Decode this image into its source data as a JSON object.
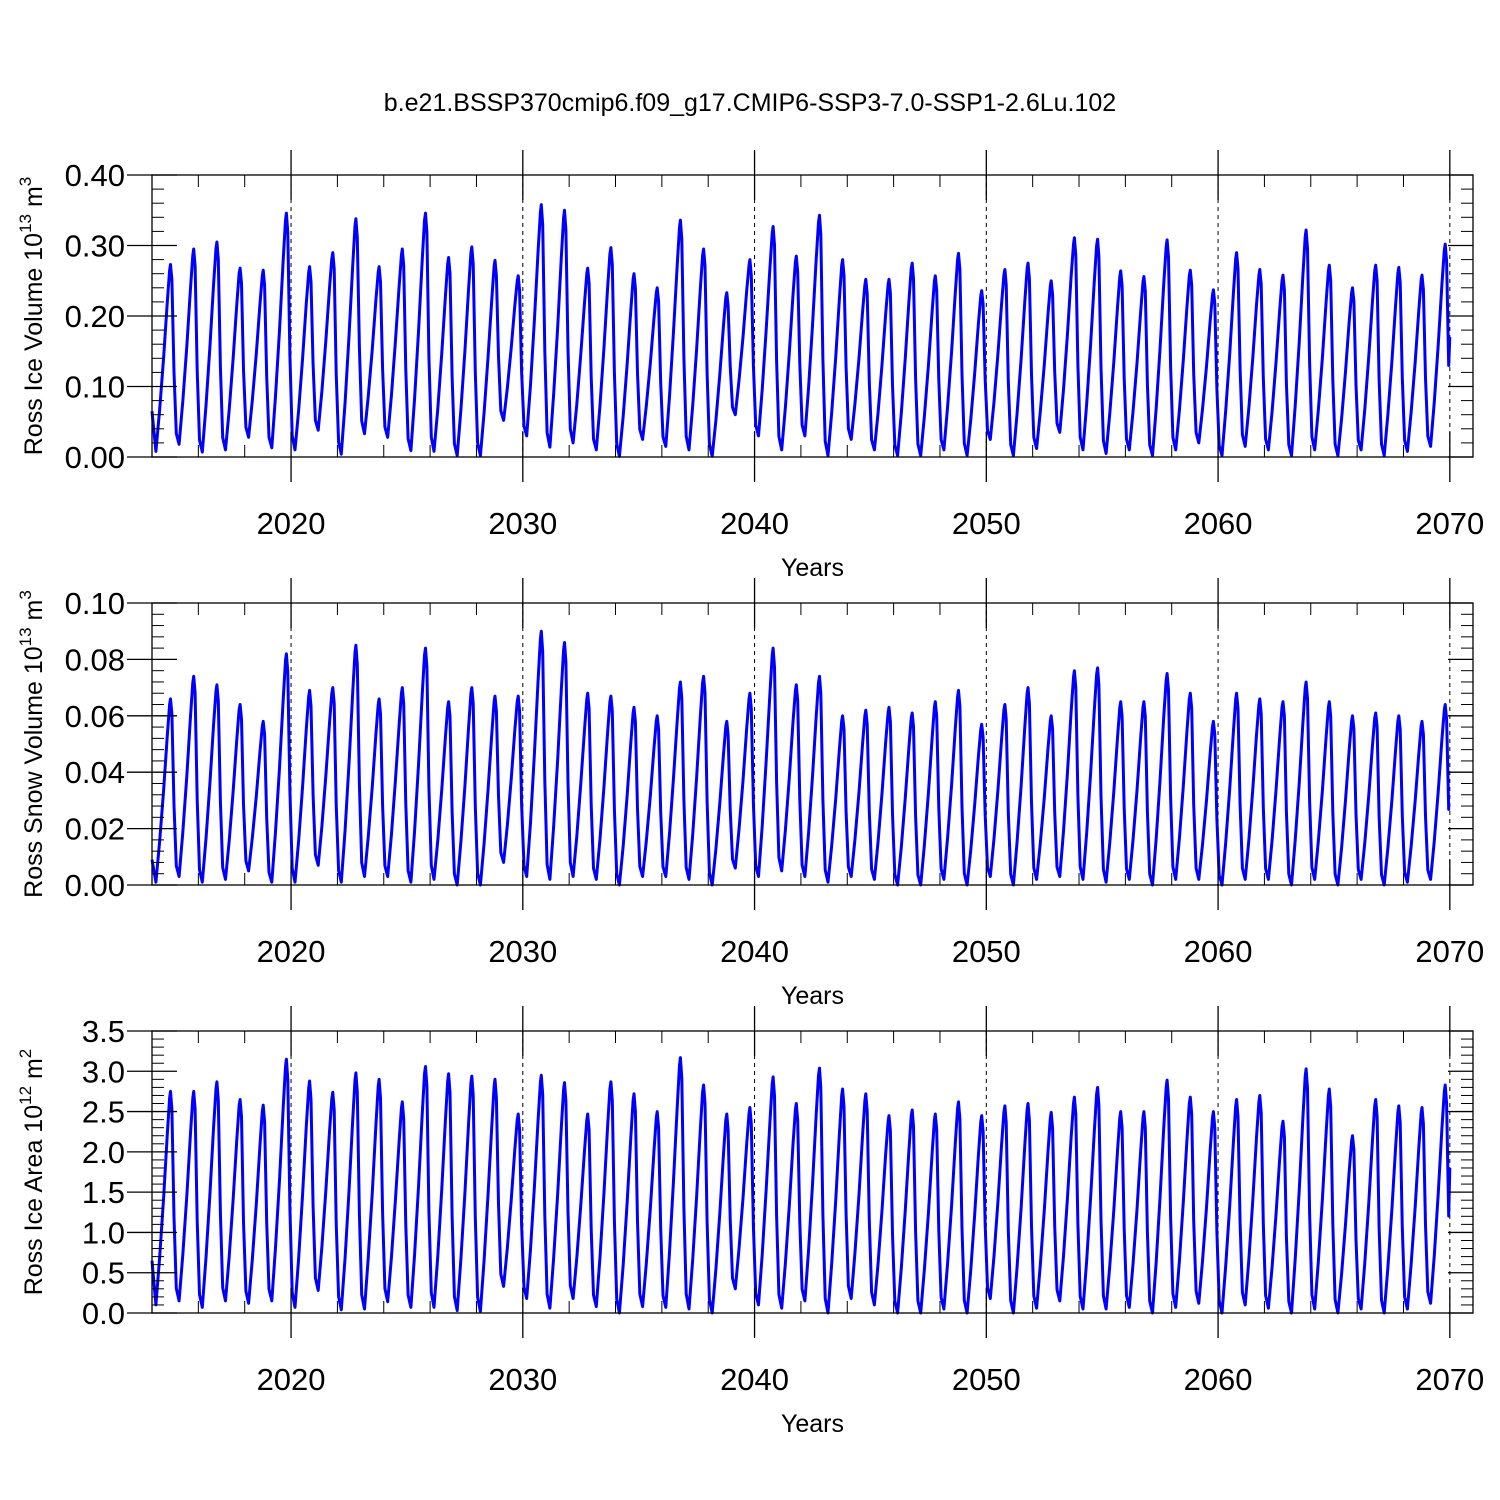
{
  "title": "b.e21.BSSP370cmip6.f09_g17.CMIP6-SSP3-7.0-SSP1-2.6Lu.102",
  "line_color": "#0000ff",
  "chart_data": [
    {
      "type": "line",
      "series_name": "Ross Ice Volume",
      "ylabel": {
        "main": "Ross Ice Volume 10",
        "exp": "13",
        "unit": " m",
        "unit_exp": "3"
      },
      "xlabel": "Years",
      "xlim": [
        2014,
        2070
      ],
      "ylim": [
        0,
        0.4
      ],
      "yticks": [
        0.0,
        0.1,
        0.2,
        0.3,
        0.4
      ],
      "ytick_labels": [
        "0.00",
        "0.10",
        "0.20",
        "0.30",
        "0.40"
      ],
      "xticks": [
        2020,
        2030,
        2040,
        2050,
        2060,
        2070
      ],
      "xtick_labels": [
        "2020",
        "2030",
        "2040",
        "2050",
        "2060",
        "2070"
      ],
      "start": 0.065,
      "end": 0.17,
      "annual_max": [
        0.273,
        0.295,
        0.305,
        0.268,
        0.265,
        0.346,
        0.27,
        0.29,
        0.338,
        0.27,
        0.295,
        0.346,
        0.283,
        0.298,
        0.279,
        0.257,
        0.358,
        0.35,
        0.268,
        0.297,
        0.26,
        0.24,
        0.336,
        0.295,
        0.233,
        0.28,
        0.327,
        0.285,
        0.343,
        0.28,
        0.252,
        0.252,
        0.275,
        0.257,
        0.289,
        0.236,
        0.266,
        0.275,
        0.25,
        0.311,
        0.309,
        0.264,
        0.256,
        0.308,
        0.265,
        0.237,
        0.29,
        0.266,
        0.258,
        0.322,
        0.272,
        0.24,
        0.272,
        0.269,
        0.258,
        0.302
      ],
      "annual_min": [
        0.008,
        0.018,
        0.007,
        0.01,
        0.028,
        0.013,
        0.01,
        0.038,
        0.004,
        0.033,
        0.028,
        0.009,
        0.008,
        0.002,
        0.002,
        0.052,
        0.03,
        0.014,
        0.02,
        0.01,
        0.001,
        0.025,
        0.015,
        0.01,
        0.001,
        0.06,
        0.03,
        0.01,
        0.03,
        0.002,
        0.025,
        0.01,
        0.002,
        0.002,
        0.01,
        0.002,
        0.025,
        0.002,
        0.012,
        0.035,
        0.01,
        0.005,
        0.01,
        0.002,
        0.01,
        0.02,
        0.002,
        0.015,
        0.01,
        0.002,
        0.01,
        0.002,
        0.01,
        0.002,
        0.008,
        0.015
      ]
    },
    {
      "type": "line",
      "series_name": "Ross Snow Volume",
      "ylabel": {
        "main": "Ross Snow Volume 10",
        "exp": "13",
        "unit": " m",
        "unit_exp": "3"
      },
      "xlabel": "Years",
      "xlim": [
        2014,
        2070
      ],
      "ylim": [
        0,
        0.1
      ],
      "yticks": [
        0.0,
        0.02,
        0.04,
        0.06,
        0.08,
        0.1
      ],
      "ytick_labels": [
        "0.00",
        "0.02",
        "0.04",
        "0.06",
        "0.08",
        "0.10"
      ],
      "xticks": [
        2020,
        2030,
        2040,
        2050,
        2060,
        2070
      ],
      "xtick_labels": [
        "2020",
        "2030",
        "2040",
        "2050",
        "2060",
        "2070"
      ],
      "start": 0.009,
      "end": 0.027,
      "annual_max": [
        0.066,
        0.074,
        0.071,
        0.064,
        0.058,
        0.082,
        0.069,
        0.07,
        0.085,
        0.066,
        0.07,
        0.084,
        0.065,
        0.07,
        0.067,
        0.067,
        0.09,
        0.086,
        0.068,
        0.067,
        0.063,
        0.06,
        0.072,
        0.074,
        0.058,
        0.068,
        0.084,
        0.071,
        0.074,
        0.06,
        0.062,
        0.063,
        0.061,
        0.065,
        0.069,
        0.057,
        0.064,
        0.07,
        0.06,
        0.076,
        0.077,
        0.065,
        0.065,
        0.075,
        0.068,
        0.058,
        0.068,
        0.066,
        0.065,
        0.072,
        0.065,
        0.06,
        0.061,
        0.06,
        0.058,
        0.064
      ],
      "annual_min": [
        0.001,
        0.003,
        0.001,
        0.002,
        0.005,
        0.001,
        0.001,
        0.007,
        0.001,
        0.003,
        0.003,
        0.001,
        0.002,
        0.0,
        0.0,
        0.008,
        0.003,
        0.002,
        0.003,
        0.002,
        0.0,
        0.003,
        0.003,
        0.002,
        0.0,
        0.006,
        0.003,
        0.005,
        0.003,
        0.001,
        0.003,
        0.002,
        0.0,
        0.0,
        0.002,
        0.0,
        0.003,
        0.0,
        0.002,
        0.003,
        0.002,
        0.001,
        0.002,
        0.0,
        0.002,
        0.002,
        0.0,
        0.002,
        0.002,
        0.0,
        0.002,
        0.0,
        0.002,
        0.0,
        0.001,
        0.002
      ]
    },
    {
      "type": "line",
      "series_name": "Ross Ice Area",
      "ylabel": {
        "main": "Ross Ice Area 10",
        "exp": "12",
        "unit": " m",
        "unit_exp": "2"
      },
      "xlabel": "Years",
      "xlim": [
        2014,
        2070
      ],
      "ylim": [
        0,
        3.5
      ],
      "yticks": [
        0.0,
        0.5,
        1.0,
        1.5,
        2.0,
        2.5,
        3.0,
        3.5
      ],
      "ytick_labels": [
        "0.0",
        "0.5",
        "1.0",
        "1.5",
        "2.0",
        "2.5",
        "3.0",
        "3.5"
      ],
      "xticks": [
        2020,
        2030,
        2040,
        2050,
        2060,
        2070
      ],
      "xtick_labels": [
        "2020",
        "2030",
        "2040",
        "2050",
        "2060",
        "2070"
      ],
      "start": 0.65,
      "end": 1.8,
      "annual_max": [
        2.75,
        2.75,
        2.87,
        2.65,
        2.58,
        3.15,
        2.88,
        2.74,
        2.98,
        2.9,
        2.62,
        3.06,
        2.97,
        2.94,
        2.9,
        2.47,
        2.95,
        2.86,
        2.47,
        2.87,
        2.72,
        2.5,
        3.17,
        2.83,
        2.47,
        2.55,
        2.93,
        2.6,
        3.04,
        2.78,
        2.72,
        2.45,
        2.52,
        2.47,
        2.62,
        2.45,
        2.57,
        2.6,
        2.49,
        2.68,
        2.8,
        2.5,
        2.5,
        2.89,
        2.68,
        2.5,
        2.65,
        2.7,
        2.38,
        3.03,
        2.78,
        2.2,
        2.65,
        2.57,
        2.55,
        2.83
      ],
      "annual_min": [
        0.1,
        0.15,
        0.07,
        0.15,
        0.12,
        0.15,
        0.07,
        0.28,
        0.04,
        0.05,
        0.14,
        0.07,
        0.07,
        0.03,
        0.02,
        0.33,
        0.18,
        0.06,
        0.18,
        0.08,
        0.0,
        0.08,
        0.07,
        0.05,
        0.0,
        0.3,
        0.1,
        0.06,
        0.15,
        0.0,
        0.18,
        0.1,
        0.0,
        0.0,
        0.05,
        0.0,
        0.18,
        0.0,
        0.06,
        0.15,
        0.05,
        0.05,
        0.07,
        0.0,
        0.07,
        0.12,
        0.0,
        0.1,
        0.06,
        0.0,
        0.05,
        0.0,
        0.05,
        0.0,
        0.05,
        0.12
      ]
    }
  ]
}
